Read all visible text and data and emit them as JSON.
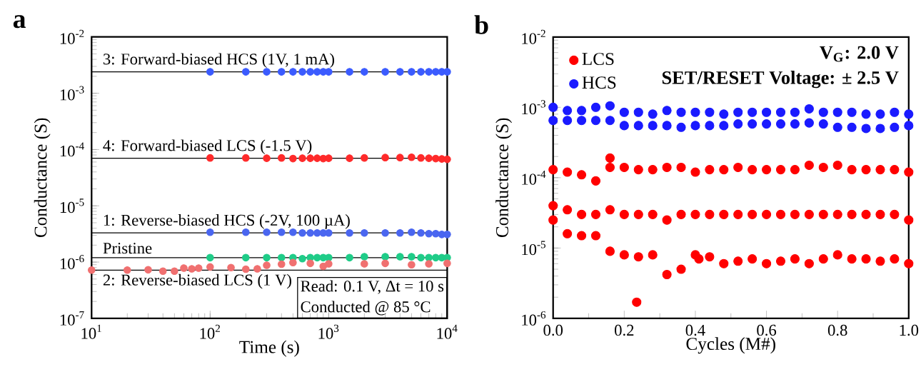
{
  "chart_data": [
    {
      "type": "scatter",
      "title": "a",
      "xlabel": "Time (s)",
      "ylabel": "Conductance (S)",
      "log": "xy",
      "marker": "circle",
      "xlim": [
        10,
        10000
      ],
      "ylim": [
        1e-07,
        0.01
      ],
      "xticks": [
        {
          "value": 10,
          "label": "10$^{1}$"
        },
        {
          "value": 100,
          "label": "10$^{2}$"
        },
        {
          "value": 1000,
          "label": "10$^{3}$"
        },
        {
          "value": 10000,
          "label": "10$^{4}$"
        }
      ],
      "yticks": [
        {
          "value": 1e-07,
          "label": "10$^{-7}$"
        },
        {
          "value": 1e-06,
          "label": "10$^{-6}$"
        },
        {
          "value": 1e-05,
          "label": "10$^{-5}$"
        },
        {
          "value": 0.0001,
          "label": "10$^{-4}$"
        },
        {
          "value": 0.001,
          "label": "10$^{-3}$"
        },
        {
          "value": 0.01,
          "label": "10$^{-2}$"
        }
      ],
      "ref_lines": [
        {
          "axis": "y",
          "value": 0.0024,
          "label": "3: Forward-biased HCS (1V, 1 mA)",
          "color": "#000000"
        },
        {
          "axis": "y",
          "value": 7e-05,
          "label": "4: Forward-biased LCS (-1.5 V)",
          "color": "#000000"
        },
        {
          "axis": "y",
          "value": 3.3e-06,
          "label": "1: Reverse-biased HCS (-2V, 100 µA)",
          "color": "#000000"
        },
        {
          "axis": "y",
          "value": 1.2e-06,
          "label": "Pristine",
          "color": "#000000"
        },
        {
          "axis": "y",
          "value": 7.2e-07,
          "label": "2: Reverse-biased LCS (1 V)",
          "color": "#000000"
        }
      ],
      "series": [
        {
          "color": "#3b5bff",
          "x": [
            100,
            200,
            300,
            400,
            500,
            600,
            700,
            800,
            900,
            1000,
            1500,
            2000,
            3000,
            4000,
            5000,
            6000,
            7000,
            8000,
            9000,
            10000
          ],
          "values": [
            0.0024,
            0.0024,
            0.0024,
            0.0024,
            0.0024,
            0.0024,
            0.0024,
            0.0024,
            0.0024,
            0.0024,
            0.0024,
            0.0024,
            0.0024,
            0.0024,
            0.0024,
            0.0024,
            0.0024,
            0.0024,
            0.0024,
            0.0024
          ]
        },
        {
          "color": "#ff2a2a",
          "x": [
            100,
            200,
            300,
            400,
            500,
            600,
            700,
            800,
            900,
            1000,
            1500,
            2000,
            3000,
            4000,
            5000,
            6000,
            7000,
            8000,
            9000,
            10000
          ],
          "values": [
            7.1e-05,
            7.1e-05,
            7e-05,
            7.1e-05,
            6.9e-05,
            7e-05,
            7e-05,
            7e-05,
            6.9e-05,
            7e-05,
            7e-05,
            7.1e-05,
            7.2e-05,
            7.2e-05,
            7.3e-05,
            7.1e-05,
            7e-05,
            6.9e-05,
            6.8e-05,
            6.7e-05
          ]
        },
        {
          "color": "#4a66f0",
          "x": [
            100,
            200,
            300,
            400,
            500,
            600,
            700,
            800,
            900,
            1000,
            1500,
            2000,
            3000,
            4000,
            5000,
            6000,
            7000,
            8000,
            9000,
            10000
          ],
          "values": [
            3.4e-06,
            3.4e-06,
            3.4e-06,
            3.4e-06,
            3.4e-06,
            3.3e-06,
            3.3e-06,
            3.3e-06,
            3.3e-06,
            3.3e-06,
            3.3e-06,
            3.3e-06,
            3.3e-06,
            3.3e-06,
            3.4e-06,
            3.3e-06,
            3.2e-06,
            3.2e-06,
            3.1e-06,
            3.1e-06
          ]
        },
        {
          "color": "#1fcc88",
          "x": [
            100,
            200,
            300,
            400,
            500,
            600,
            700,
            800,
            900,
            1000,
            1500,
            2000,
            3000,
            4000,
            5000,
            6000,
            7000,
            8000,
            9000,
            10000
          ],
          "values": [
            1.2e-06,
            1.2e-06,
            1.2e-06,
            1.2e-06,
            1.2e-06,
            1.15e-06,
            1.2e-06,
            1.2e-06,
            1.2e-06,
            1.2e-06,
            1.2e-06,
            1.25e-06,
            1.25e-06,
            1.25e-06,
            1.25e-06,
            1.2e-06,
            1.2e-06,
            1.2e-06,
            1.2e-06,
            1.2e-06
          ]
        },
        {
          "color": "#f07070",
          "x": [
            10,
            20,
            30,
            40,
            50,
            60,
            70,
            80,
            100,
            150,
            200,
            250,
            300,
            400,
            500,
            700,
            900,
            1000,
            2000,
            3000,
            5000,
            7000,
            10000
          ],
          "values": [
            7.2e-07,
            7.2e-07,
            7.3e-07,
            6.9e-07,
            6.9e-07,
            7.8e-07,
            7.6e-07,
            7.8e-07,
            8.2e-07,
            8e-07,
            7.5e-07,
            7.6e-07,
            8.8e-07,
            9.2e-07,
            9.8e-07,
            9.5e-07,
            8.4e-07,
            9.3e-07,
            9.3e-07,
            9.5e-07,
            9e-07,
            9.3e-07,
            9.5e-07
          ]
        }
      ],
      "annotations": [
        "Read: 0.1 V, Δt = 10 s",
        "Conducted @ 85 °C"
      ]
    },
    {
      "type": "scatter",
      "title": "b",
      "xlabel": "Cycles (M#)",
      "ylabel": "Conductance (S)",
      "log": "y",
      "marker": "circle",
      "legend": "top left",
      "xlim": [
        0,
        1
      ],
      "ylim": [
        1e-06,
        0.01
      ],
      "xticks": [
        {
          "value": 0,
          "label": "0.0"
        },
        0.2,
        0.4,
        0.6,
        0.8,
        {
          "value": 1,
          "label": "1.0"
        }
      ],
      "yticks": [
        {
          "value": 1e-06,
          "label": "10$^{-6}$"
        },
        {
          "value": 1e-05,
          "label": "10$^{-5}$"
        },
        {
          "value": 0.0001,
          "label": "10$^{-4}$"
        },
        {
          "value": 0.001,
          "label": "10$^{-3}$"
        },
        {
          "value": 0.01,
          "label": "10$^{-2}$"
        }
      ],
      "series": [
        {
          "name": "LCS",
          "color": "#ff0000",
          "x": [
            0,
            0,
            0,
            0.04,
            0.04,
            0.04,
            0.08,
            0.08,
            0.08,
            0.12,
            0.12,
            0.12,
            0.16,
            0.16,
            0.16,
            0.2,
            0.2,
            0.2,
            0.24,
            0.24,
            0.24,
            0.28,
            0.28,
            0.28,
            0.32,
            0.32,
            0.32,
            0.36,
            0.36,
            0.36,
            0.4,
            0.4,
            0.4,
            0.44,
            0.44,
            0.44,
            0.48,
            0.48,
            0.48,
            0.52,
            0.52,
            0.52,
            0.56,
            0.56,
            0.56,
            0.6,
            0.6,
            0.6,
            0.64,
            0.64,
            0.64,
            0.68,
            0.68,
            0.68,
            0.72,
            0.72,
            0.72,
            0.76,
            0.76,
            0.76,
            0.8,
            0.8,
            0.8,
            0.84,
            0.84,
            0.84,
            0.88,
            0.88,
            0.88,
            0.92,
            0.92,
            0.92,
            0.96,
            0.96,
            0.96,
            1,
            1,
            1,
            0.16,
            0.235,
            0.41
          ],
          "values": [
            0.00013,
            4e-05,
            2.5e-05,
            0.00012,
            3.5e-05,
            1.6e-05,
            0.00011,
            3e-05,
            1.5e-05,
            9e-05,
            3e-05,
            1.5e-05,
            0.00014,
            3.5e-05,
            9e-06,
            0.00014,
            3e-05,
            8e-06,
            0.00013,
            3e-05,
            7.5e-06,
            0.00013,
            3e-05,
            8e-06,
            0.00014,
            2.5e-05,
            4.2e-06,
            0.00014,
            3e-05,
            5e-06,
            0.00012,
            3e-05,
            8e-06,
            0.00013,
            3e-05,
            7.5e-06,
            0.00013,
            3e-05,
            6e-06,
            0.00014,
            3e-05,
            6.5e-06,
            0.00013,
            3e-05,
            7e-06,
            0.00013,
            3e-05,
            6e-06,
            0.00013,
            3e-05,
            6.5e-06,
            0.00013,
            3e-05,
            7e-06,
            0.00015,
            3e-05,
            6e-06,
            0.00014,
            3e-05,
            7e-06,
            0.00015,
            3e-05,
            8e-06,
            0.00013,
            3e-05,
            7e-06,
            0.00013,
            3e-05,
            7e-06,
            0.00013,
            3e-05,
            6.5e-06,
            0.00013,
            3e-05,
            7e-06,
            0.00012,
            2.5e-05,
            6e-06,
            0.00019,
            1.7e-06,
            7e-06
          ]
        },
        {
          "name": "HCS",
          "color": "#1a1aff",
          "x": [
            0,
            0,
            0.04,
            0.04,
            0.08,
            0.08,
            0.12,
            0.12,
            0.16,
            0.16,
            0.2,
            0.2,
            0.24,
            0.24,
            0.28,
            0.28,
            0.32,
            0.32,
            0.36,
            0.36,
            0.4,
            0.4,
            0.44,
            0.44,
            0.48,
            0.48,
            0.52,
            0.52,
            0.56,
            0.56,
            0.6,
            0.6,
            0.64,
            0.64,
            0.68,
            0.68,
            0.72,
            0.72,
            0.76,
            0.76,
            0.8,
            0.8,
            0.84,
            0.84,
            0.88,
            0.88,
            0.92,
            0.92,
            0.96,
            0.96,
            1,
            1
          ],
          "values": [
            0.001,
            0.00065,
            0.0009,
            0.00065,
            0.0009,
            0.00065,
            0.001,
            0.00065,
            0.00105,
            0.00065,
            0.00085,
            0.00055,
            0.00085,
            0.00055,
            0.0008,
            0.00055,
            0.0009,
            0.00055,
            0.00085,
            0.00052,
            0.00085,
            0.00055,
            0.00085,
            0.00055,
            0.0008,
            0.00055,
            0.00085,
            0.00058,
            0.00085,
            0.00058,
            0.00085,
            0.00058,
            0.00085,
            0.00058,
            0.00085,
            0.00058,
            0.00095,
            0.0006,
            0.00085,
            0.00058,
            0.00085,
            0.00052,
            0.00085,
            0.00052,
            0.0008,
            0.0005,
            0.0008,
            0.0005,
            0.00085,
            0.00052,
            0.0008,
            0.00055
          ]
        }
      ],
      "annotations": [
        "V$_{G}$: 2.0 V",
        "SET/RESET Voltage: ± 2.5 V"
      ]
    }
  ]
}
